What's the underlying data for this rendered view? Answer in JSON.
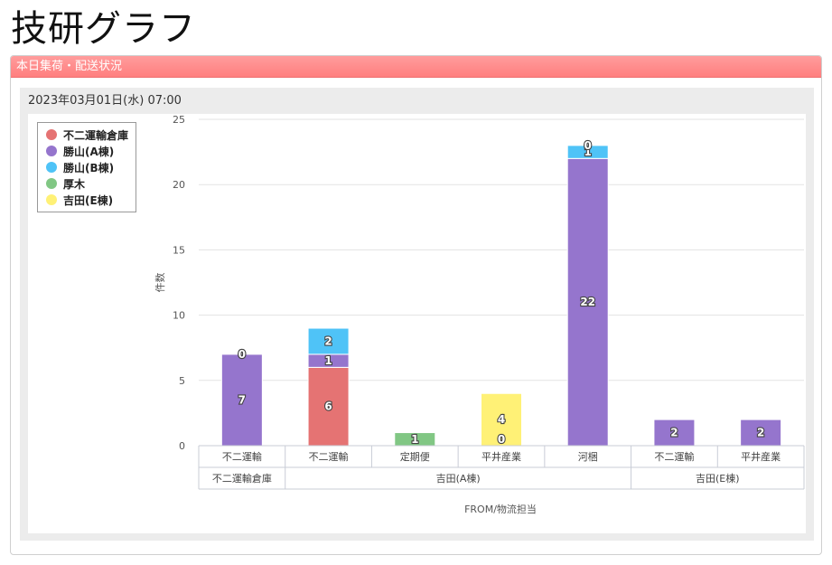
{
  "page": {
    "app_title": "技研グラフ",
    "panel_title": "本日集荷・配送状況",
    "timestamp": "2023年03月01日(水) 07:00"
  },
  "chart_data": {
    "type": "bar",
    "stacked": true,
    "title": "",
    "xlabel": "FROM/物流担当",
    "ylabel": "件数",
    "ylim": [
      0,
      25
    ],
    "yticks": [
      0,
      5,
      10,
      15,
      20,
      25
    ],
    "grid": true,
    "legend_position": "top-left",
    "categories": [
      "不二運輸",
      "不二運輸",
      "定期便",
      "平井産業",
      "河梱",
      "不二運輸",
      "平井産業"
    ],
    "groups": [
      {
        "label": "不二運輸倉庫",
        "span": 1
      },
      {
        "label": "吉田(A棟)",
        "span": 4
      },
      {
        "label": "吉田(E棟)",
        "span": 2
      }
    ],
    "series": [
      {
        "name": "不二運輸倉庫",
        "color": "#e57373",
        "values": [
          null,
          6,
          null,
          null,
          null,
          null,
          null
        ]
      },
      {
        "name": "勝山(A棟)",
        "color": "#9575cd",
        "values": [
          7,
          1,
          null,
          null,
          22,
          2,
          2
        ]
      },
      {
        "name": "勝山(B棟)",
        "color": "#4fc3f7",
        "values": [
          0,
          2,
          null,
          null,
          1,
          null,
          null
        ]
      },
      {
        "name": "厚木",
        "color": "#81c784",
        "values": [
          0,
          null,
          1,
          null,
          0,
          null,
          null
        ]
      },
      {
        "name": "吉田(E棟)",
        "color": "#fff176",
        "values": [
          null,
          null,
          null,
          4,
          null,
          null,
          null
        ]
      }
    ],
    "extra_zero_labels": [
      {
        "category_index": 3,
        "value": "0"
      }
    ]
  }
}
